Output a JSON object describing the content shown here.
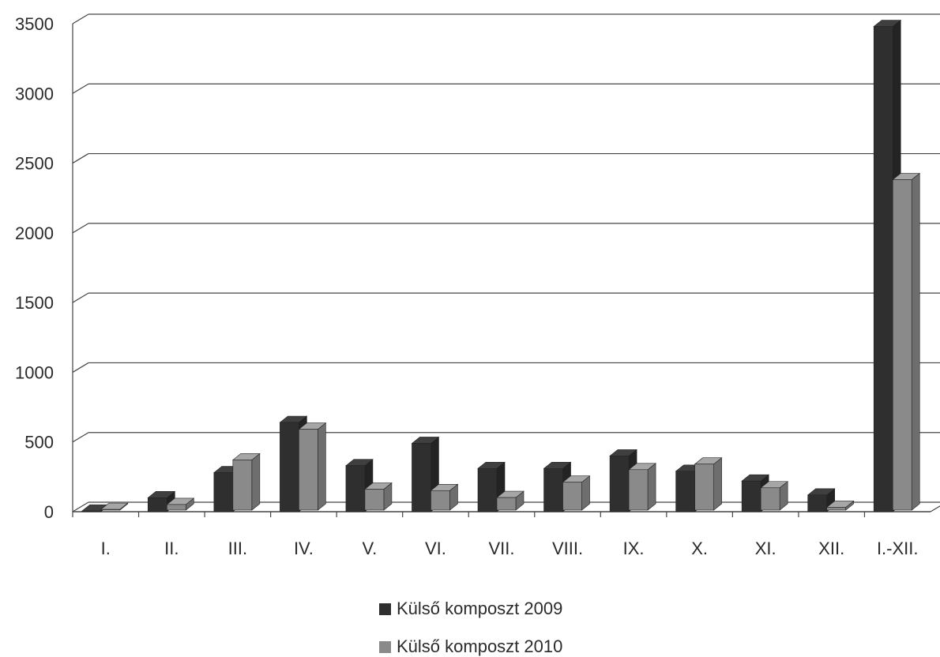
{
  "chart_data": {
    "type": "bar",
    "categories": [
      "I.",
      "II.",
      "III.",
      "IV.",
      "V.",
      "VI.",
      "VII.",
      "VIII.",
      "IX.",
      "X.",
      "XI.",
      "XII.",
      "I.-XII."
    ],
    "series": [
      {
        "name": "Külső komposzt 2009",
        "color": "#2f2f2f",
        "values": [
          5,
          100,
          280,
          640,
          330,
          490,
          310,
          310,
          400,
          290,
          220,
          120,
          3480
        ]
      },
      {
        "name": "Külső komposzt 2010",
        "color": "#8a8a8a",
        "values": [
          5,
          40,
          360,
          580,
          150,
          140,
          90,
          200,
          290,
          330,
          160,
          20,
          2370
        ]
      }
    ],
    "y_ticks": [
      "0",
      "500",
      "1000",
      "1500",
      "2000",
      "2500",
      "3000",
      "3500"
    ],
    "ylim": [
      0,
      3500
    ],
    "grid": true,
    "legend_position": "bottom",
    "title": "",
    "xlabel": "",
    "ylabel": ""
  }
}
